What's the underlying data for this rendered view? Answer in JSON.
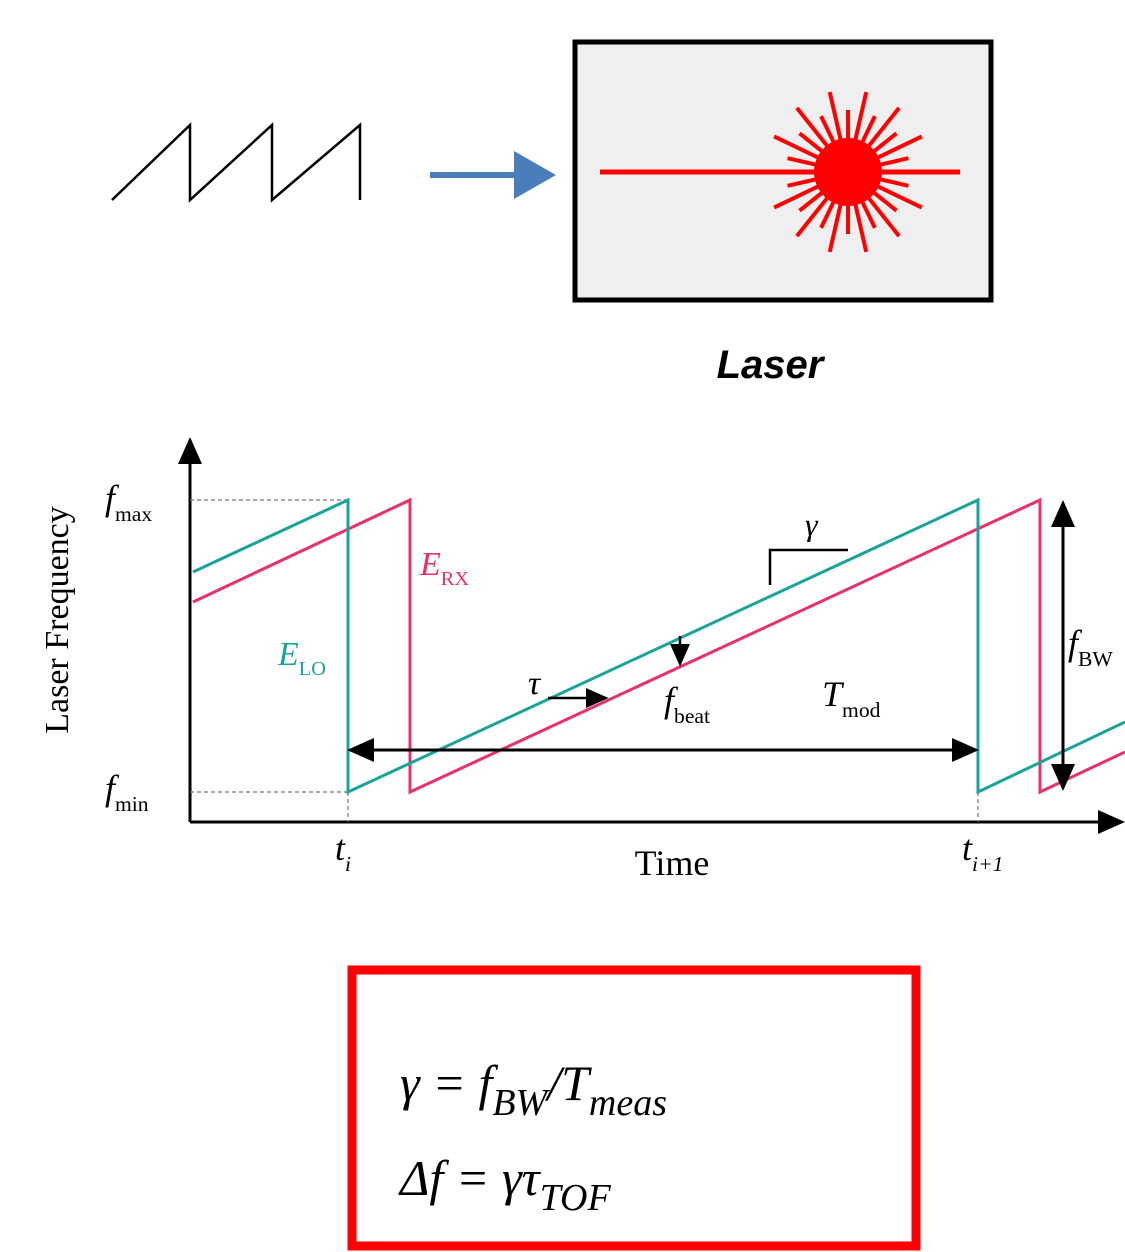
{
  "laser_label": "Laser",
  "plot": {
    "y_axis_label": "Laser Frequency",
    "x_axis_label": "Time",
    "labels": [
      {
        "main": "f",
        "sub": "max"
      },
      {
        "main": "f",
        "sub": "min"
      },
      {
        "main": "E",
        "sub": "RX"
      },
      {
        "main": "E",
        "sub": "LO"
      },
      {
        "main": "τ"
      },
      {
        "main": "f",
        "sub": "beat"
      },
      {
        "main": "γ"
      },
      {
        "main": "T",
        "sub": "mod"
      },
      {
        "main": "f",
        "sub": "BW"
      },
      {
        "main": "t",
        "sub": "i"
      },
      {
        "main": "t",
        "sub": "i+1"
      }
    ]
  },
  "formula": {
    "lines": [
      [
        {
          "main": "γ = f",
          "sub": "BW"
        },
        {
          "main": "/T",
          "sub": "meas"
        }
      ],
      [
        {
          "main": "Δf = γτ",
          "sub": "TOF"
        }
      ]
    ]
  }
}
